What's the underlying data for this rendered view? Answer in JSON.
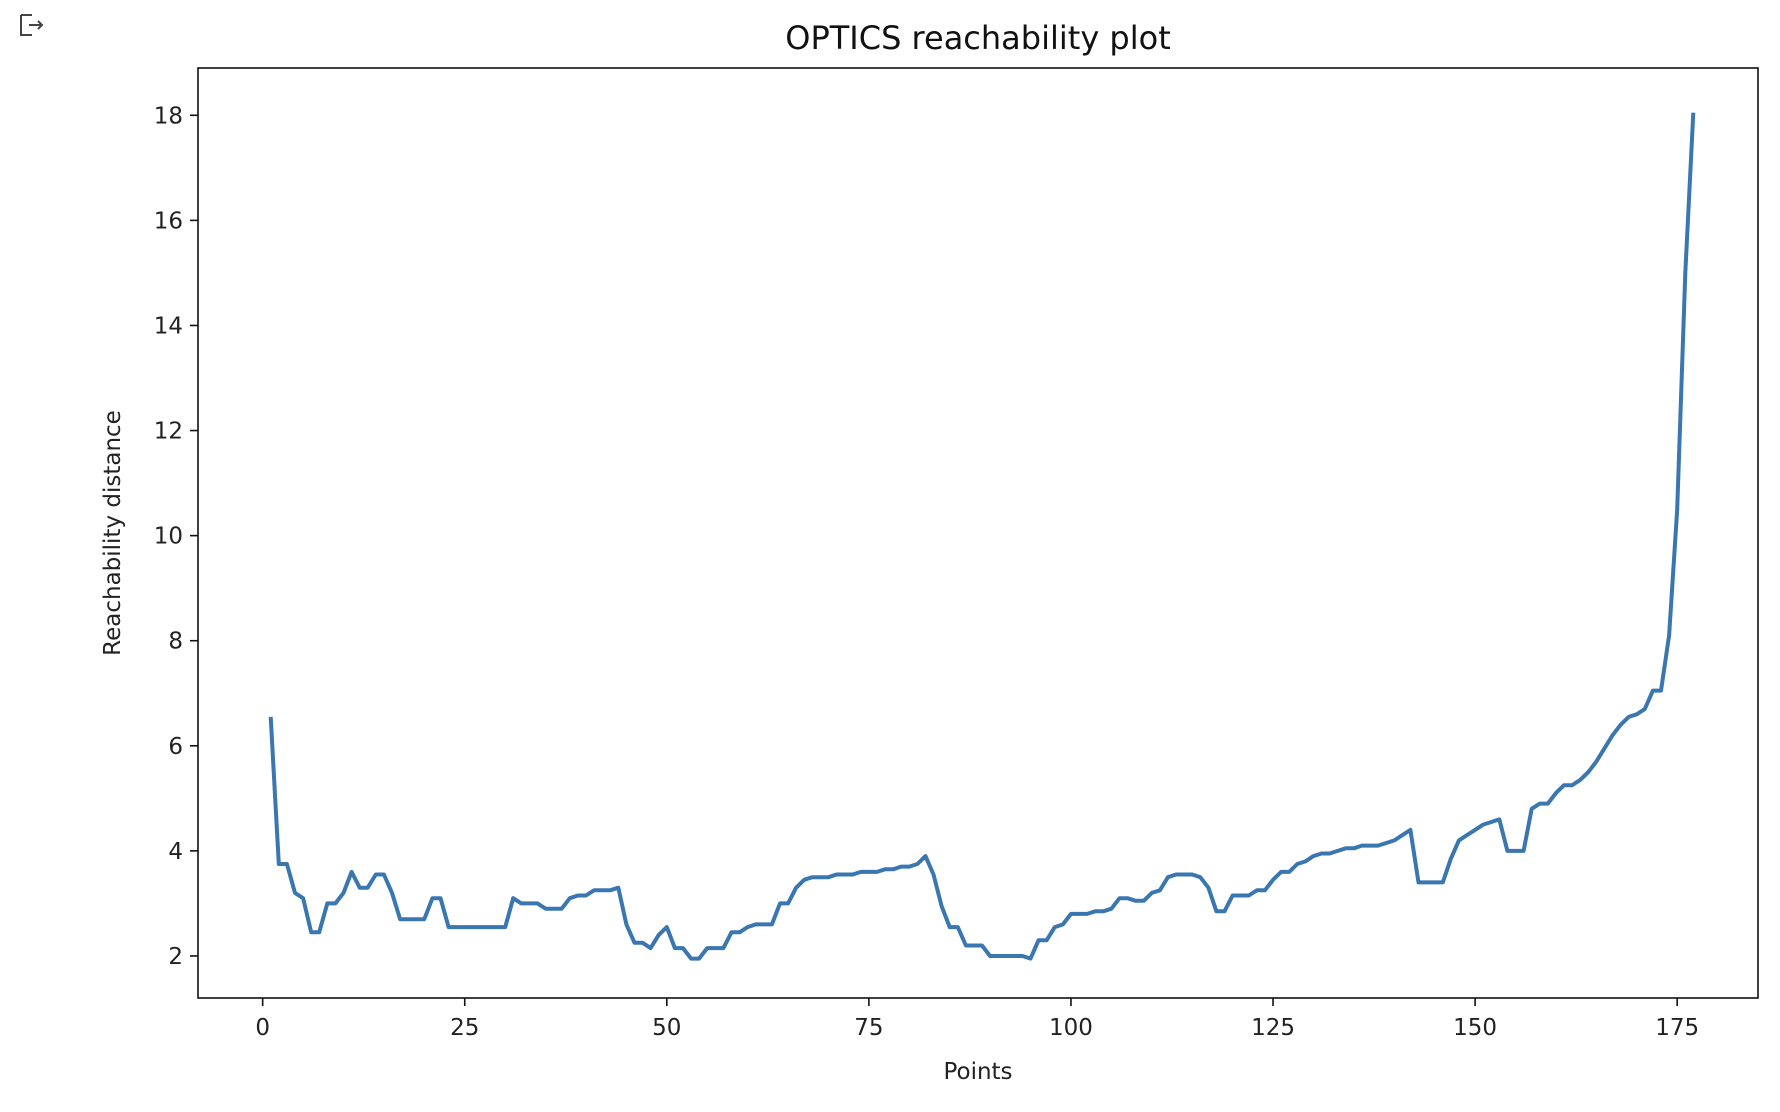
{
  "cell_output_icon": "output-arrow-icon",
  "chart_data": {
    "type": "line",
    "title": "OPTICS reachability plot",
    "xlabel": "Points",
    "ylabel": "Reachability distance",
    "xlim": [
      -8,
      185
    ],
    "ylim": [
      1.2,
      18.9
    ],
    "x_ticks": [
      0,
      25,
      50,
      75,
      100,
      125,
      150,
      175
    ],
    "y_ticks": [
      2,
      4,
      6,
      8,
      10,
      12,
      14,
      16,
      18
    ],
    "grid": false,
    "line_color": "#3a76b0",
    "series": [
      {
        "x": [
          1,
          2,
          3,
          4,
          5,
          6,
          7,
          8,
          9,
          10,
          11,
          12,
          13,
          14,
          15,
          16,
          17,
          18,
          19,
          20,
          21,
          22,
          23,
          24,
          25,
          26,
          27,
          28,
          29,
          30,
          31,
          32,
          33,
          34,
          35,
          36,
          37,
          38,
          39,
          40,
          41,
          42,
          43,
          44,
          45,
          46,
          47,
          48,
          49,
          50,
          51,
          52,
          53,
          54,
          55,
          56,
          57,
          58,
          59,
          60,
          61,
          62,
          63,
          64,
          65,
          66,
          67,
          68,
          69,
          70,
          71,
          72,
          73,
          74,
          75,
          76,
          77,
          78,
          79,
          80,
          81,
          82,
          83,
          84,
          85,
          86,
          87,
          88,
          89,
          90,
          91,
          92,
          93,
          94,
          95,
          96,
          97,
          98,
          99,
          100,
          101,
          102,
          103,
          104,
          105,
          106,
          107,
          108,
          109,
          110,
          111,
          112,
          113,
          114,
          115,
          116,
          117,
          118,
          119,
          120,
          121,
          122,
          123,
          124,
          125,
          126,
          127,
          128,
          129,
          130,
          131,
          132,
          133,
          134,
          135,
          136,
          137,
          138,
          139,
          140,
          141,
          142,
          143,
          144,
          145,
          146,
          147,
          148,
          149,
          150,
          151,
          152,
          153,
          154,
          155,
          156,
          157,
          158,
          159,
          160,
          161,
          162,
          163,
          164,
          165,
          166,
          167,
          168,
          169,
          170,
          171,
          172,
          173,
          174,
          175,
          176,
          177
        ],
        "values": [
          6.55,
          3.75,
          3.75,
          3.2,
          3.1,
          2.45,
          2.45,
          3.0,
          3.0,
          3.2,
          3.6,
          3.3,
          3.3,
          3.55,
          3.55,
          3.2,
          2.7,
          2.7,
          2.7,
          2.7,
          3.1,
          3.1,
          2.55,
          2.55,
          2.55,
          2.55,
          2.55,
          2.55,
          2.55,
          2.55,
          3.1,
          3.0,
          3.0,
          3.0,
          2.9,
          2.9,
          2.9,
          3.1,
          3.15,
          3.15,
          3.25,
          3.25,
          3.25,
          3.3,
          2.6,
          2.25,
          2.25,
          2.15,
          2.4,
          2.55,
          2.15,
          2.15,
          1.95,
          1.95,
          2.15,
          2.15,
          2.15,
          2.45,
          2.45,
          2.55,
          2.6,
          2.6,
          2.6,
          3.0,
          3.0,
          3.3,
          3.45,
          3.5,
          3.5,
          3.5,
          3.55,
          3.55,
          3.55,
          3.6,
          3.6,
          3.6,
          3.65,
          3.65,
          3.7,
          3.7,
          3.75,
          3.9,
          3.55,
          2.95,
          2.55,
          2.55,
          2.2,
          2.2,
          2.2,
          2.0,
          2.0,
          2.0,
          2.0,
          2.0,
          1.95,
          2.3,
          2.3,
          2.55,
          2.6,
          2.8,
          2.8,
          2.8,
          2.85,
          2.85,
          2.9,
          3.1,
          3.1,
          3.05,
          3.05,
          3.2,
          3.25,
          3.5,
          3.55,
          3.55,
          3.55,
          3.5,
          3.3,
          2.85,
          2.85,
          3.15,
          3.15,
          3.15,
          3.25,
          3.25,
          3.45,
          3.6,
          3.6,
          3.75,
          3.8,
          3.9,
          3.95,
          3.95,
          4.0,
          4.05,
          4.05,
          4.1,
          4.1,
          4.1,
          4.15,
          4.2,
          4.3,
          4.4,
          3.4,
          3.4,
          3.4,
          3.4,
          3.85,
          4.2,
          4.3,
          4.4,
          4.5,
          4.55,
          4.6,
          4.0,
          4.0,
          4.0,
          4.8,
          4.9,
          4.9,
          5.1,
          5.25,
          5.25,
          5.35,
          5.5,
          5.7,
          5.95,
          6.2,
          6.4,
          6.55,
          6.6,
          6.7,
          7.05,
          7.05,
          8.1,
          10.5,
          15.0,
          18.05
        ]
      }
    ]
  }
}
